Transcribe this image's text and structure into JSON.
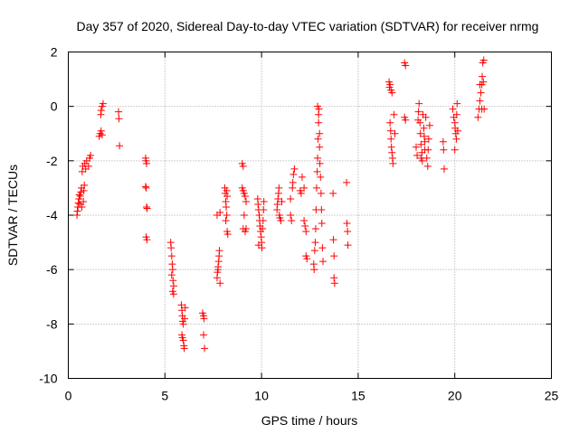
{
  "chart_data": {
    "type": "scatter",
    "title": "Day 357 of 2020, Sidereal Day-to-day VTEC variation (SDTVAR) for receiver nrmg",
    "xlabel": "GPS time / hours",
    "ylabel": "SDTVAR / TECUs",
    "xlim": [
      0,
      25
    ],
    "ylim": [
      -10,
      2
    ],
    "xticks": [
      0,
      5,
      10,
      15,
      20,
      25
    ],
    "yticks": [
      -10,
      -8,
      -6,
      -4,
      -2,
      0,
      2
    ],
    "grid": true,
    "legend": "none",
    "marker": "plus",
    "color": "#ff0000",
    "series": [
      {
        "name": "SDTVAR",
        "points": [
          [
            0.45,
            -4.0
          ],
          [
            0.47,
            -3.85
          ],
          [
            0.5,
            -3.7
          ],
          [
            0.52,
            -3.55
          ],
          [
            0.55,
            -3.4
          ],
          [
            0.57,
            -3.25
          ],
          [
            0.6,
            -3.6
          ],
          [
            0.62,
            -3.3
          ],
          [
            0.65,
            -3.15
          ],
          [
            0.68,
            -3.0
          ],
          [
            0.7,
            -3.7
          ],
          [
            0.72,
            -2.4
          ],
          [
            0.75,
            -2.2
          ],
          [
            0.78,
            -3.5
          ],
          [
            0.8,
            -3.1
          ],
          [
            0.83,
            -2.9
          ],
          [
            0.85,
            -2.1
          ],
          [
            0.9,
            -2.3
          ],
          [
            0.95,
            -2.0
          ],
          [
            1.05,
            -2.2
          ],
          [
            1.1,
            -1.9
          ],
          [
            1.15,
            -1.8
          ],
          [
            1.6,
            -1.1
          ],
          [
            1.65,
            -1.0
          ],
          [
            1.7,
            -0.9
          ],
          [
            1.75,
            -1.05
          ],
          [
            1.7,
            -0.15
          ],
          [
            1.75,
            0.0
          ],
          [
            1.8,
            0.1
          ],
          [
            1.68,
            -0.3
          ],
          [
            2.6,
            -0.2
          ],
          [
            2.62,
            -0.45
          ],
          [
            2.65,
            -1.45
          ],
          [
            4.0,
            -1.9
          ],
          [
            4.02,
            -2.0
          ],
          [
            4.05,
            -2.1
          ],
          [
            4.0,
            -2.95
          ],
          [
            4.03,
            -3.0
          ],
          [
            4.05,
            -3.7
          ],
          [
            4.08,
            -3.75
          ],
          [
            4.03,
            -4.8
          ],
          [
            4.07,
            -4.9
          ],
          [
            5.3,
            -5.0
          ],
          [
            5.32,
            -5.2
          ],
          [
            5.35,
            -5.5
          ],
          [
            5.38,
            -5.8
          ],
          [
            5.4,
            -6.0
          ],
          [
            5.35,
            -6.2
          ],
          [
            5.42,
            -6.4
          ],
          [
            5.45,
            -6.6
          ],
          [
            5.4,
            -6.8
          ],
          [
            5.45,
            -6.9
          ],
          [
            5.85,
            -7.3
          ],
          [
            5.88,
            -7.5
          ],
          [
            5.9,
            -7.7
          ],
          [
            5.92,
            -7.9
          ],
          [
            5.95,
            -8.0
          ],
          [
            5.88,
            -8.4
          ],
          [
            5.9,
            -8.5
          ],
          [
            5.95,
            -8.6
          ],
          [
            5.98,
            -8.8
          ],
          [
            6.0,
            -8.9
          ],
          [
            6.05,
            -7.4
          ],
          [
            6.02,
            -7.8
          ],
          [
            6.95,
            -7.6
          ],
          [
            7.0,
            -7.7
          ],
          [
            7.02,
            -7.8
          ],
          [
            7.0,
            -8.4
          ],
          [
            7.05,
            -8.9
          ],
          [
            7.7,
            -6.3
          ],
          [
            7.72,
            -6.1
          ],
          [
            7.75,
            -5.9
          ],
          [
            7.78,
            -5.7
          ],
          [
            7.8,
            -5.5
          ],
          [
            7.82,
            -5.3
          ],
          [
            7.85,
            -6.5
          ],
          [
            7.75,
            -6.0
          ],
          [
            7.7,
            -4.0
          ],
          [
            7.85,
            -3.9
          ],
          [
            8.1,
            -3.0
          ],
          [
            8.12,
            -3.2
          ],
          [
            8.15,
            -3.5
          ],
          [
            8.17,
            -3.7
          ],
          [
            8.2,
            -4.0
          ],
          [
            8.22,
            -4.6
          ],
          [
            8.25,
            -4.7
          ],
          [
            8.2,
            -3.1
          ],
          [
            8.15,
            -4.2
          ],
          [
            8.22,
            -3.3
          ],
          [
            9.0,
            -2.1
          ],
          [
            9.05,
            -2.2
          ],
          [
            9.0,
            -3.0
          ],
          [
            9.05,
            -3.1
          ],
          [
            9.1,
            -3.2
          ],
          [
            9.15,
            -3.3
          ],
          [
            9.2,
            -3.5
          ],
          [
            9.1,
            -4.0
          ],
          [
            9.2,
            -4.5
          ],
          [
            9.15,
            -4.6
          ],
          [
            9.05,
            -4.5
          ],
          [
            9.8,
            -3.4
          ],
          [
            9.82,
            -3.6
          ],
          [
            9.85,
            -3.8
          ],
          [
            9.88,
            -4.0
          ],
          [
            9.9,
            -4.2
          ],
          [
            9.92,
            -4.4
          ],
          [
            9.95,
            -4.6
          ],
          [
            9.98,
            -4.8
          ],
          [
            10.0,
            -5.0
          ],
          [
            10.02,
            -5.2
          ],
          [
            9.85,
            -5.1
          ],
          [
            10.05,
            -4.5
          ],
          [
            10.08,
            -4.2
          ],
          [
            10.1,
            -3.8
          ],
          [
            10.12,
            -3.5
          ],
          [
            10.8,
            -3.8
          ],
          [
            10.82,
            -3.6
          ],
          [
            10.85,
            -3.4
          ],
          [
            10.88,
            -3.2
          ],
          [
            10.9,
            -3.0
          ],
          [
            10.92,
            -4.0
          ],
          [
            10.95,
            -4.1
          ],
          [
            11.0,
            -4.2
          ],
          [
            11.05,
            -3.5
          ],
          [
            11.5,
            -4.0
          ],
          [
            11.55,
            -4.2
          ],
          [
            11.6,
            -3.0
          ],
          [
            11.62,
            -2.8
          ],
          [
            11.65,
            -2.5
          ],
          [
            11.7,
            -2.3
          ],
          [
            11.5,
            -3.4
          ],
          [
            12.0,
            -3.1
          ],
          [
            12.05,
            -3.2
          ],
          [
            12.1,
            -2.6
          ],
          [
            12.2,
            -3.0
          ],
          [
            12.2,
            -4.2
          ],
          [
            12.25,
            -4.4
          ],
          [
            12.3,
            -4.6
          ],
          [
            12.3,
            -5.5
          ],
          [
            12.35,
            -5.6
          ],
          [
            12.7,
            -5.8
          ],
          [
            12.72,
            -6.0
          ],
          [
            12.75,
            -5.3
          ],
          [
            12.78,
            -5.0
          ],
          [
            12.8,
            -4.5
          ],
          [
            12.82,
            -3.8
          ],
          [
            12.85,
            -3.0
          ],
          [
            12.88,
            -2.4
          ],
          [
            12.9,
            -1.9
          ],
          [
            12.92,
            -1.2
          ],
          [
            12.95,
            -0.6
          ],
          [
            12.97,
            -0.1
          ],
          [
            12.9,
            0.0
          ],
          [
            12.95,
            -0.3
          ],
          [
            13.0,
            -1.5
          ],
          [
            13.02,
            -2.1
          ],
          [
            13.05,
            -2.6
          ],
          [
            13.08,
            -3.2
          ],
          [
            13.1,
            -3.8
          ],
          [
            13.12,
            -4.3
          ],
          [
            13.15,
            -5.2
          ],
          [
            13.18,
            -5.7
          ],
          [
            13.0,
            -1.0
          ],
          [
            13.7,
            -3.2
          ],
          [
            13.72,
            -4.9
          ],
          [
            13.75,
            -5.5
          ],
          [
            13.75,
            -6.3
          ],
          [
            13.78,
            -6.5
          ],
          [
            14.4,
            -2.8
          ],
          [
            14.42,
            -4.3
          ],
          [
            14.45,
            -4.6
          ],
          [
            14.47,
            -5.1
          ],
          [
            16.6,
            0.9
          ],
          [
            16.62,
            0.7
          ],
          [
            16.65,
            0.8
          ],
          [
            16.7,
            0.6
          ],
          [
            16.75,
            0.5
          ],
          [
            16.65,
            -0.6
          ],
          [
            16.68,
            -0.9
          ],
          [
            16.7,
            -1.2
          ],
          [
            16.72,
            -1.5
          ],
          [
            16.75,
            -1.7
          ],
          [
            16.78,
            -1.9
          ],
          [
            16.8,
            -2.1
          ],
          [
            16.85,
            -0.3
          ],
          [
            16.9,
            -1.0
          ],
          [
            17.4,
            1.6
          ],
          [
            17.45,
            1.5
          ],
          [
            17.4,
            -0.4
          ],
          [
            17.45,
            -0.5
          ],
          [
            18.0,
            -1.5
          ],
          [
            18.05,
            -1.8
          ],
          [
            18.1,
            -0.5
          ],
          [
            18.12,
            -0.2
          ],
          [
            18.15,
            0.1
          ],
          [
            18.2,
            -0.6
          ],
          [
            18.22,
            -1.0
          ],
          [
            18.25,
            -1.4
          ],
          [
            18.3,
            -1.7
          ],
          [
            18.32,
            -2.0
          ],
          [
            18.35,
            -0.3
          ],
          [
            18.4,
            -0.8
          ],
          [
            18.42,
            -1.1
          ],
          [
            18.45,
            -1.3
          ],
          [
            18.5,
            -0.4
          ],
          [
            18.55,
            -1.9
          ],
          [
            18.6,
            -2.2
          ],
          [
            18.62,
            -1.6
          ],
          [
            18.65,
            -1.2
          ],
          [
            18.7,
            -0.7
          ],
          [
            18.25,
            -1.9
          ],
          [
            18.45,
            -1.6
          ],
          [
            19.4,
            -1.3
          ],
          [
            19.42,
            -1.6
          ],
          [
            19.45,
            -2.3
          ],
          [
            19.9,
            -0.1
          ],
          [
            19.95,
            -0.4
          ],
          [
            20.0,
            -0.6
          ],
          [
            20.02,
            -0.8
          ],
          [
            20.05,
            -1.0
          ],
          [
            20.08,
            -1.2
          ],
          [
            20.1,
            -0.3
          ],
          [
            20.12,
            0.1
          ],
          [
            20.15,
            -0.9
          ],
          [
            20.0,
            -1.6
          ],
          [
            21.2,
            -0.4
          ],
          [
            21.25,
            -0.1
          ],
          [
            21.3,
            0.2
          ],
          [
            21.35,
            0.5
          ],
          [
            21.4,
            0.8
          ],
          [
            21.42,
            1.1
          ],
          [
            21.45,
            1.6
          ],
          [
            21.5,
            1.7
          ],
          [
            21.48,
            0.9
          ],
          [
            21.52,
            -0.1
          ],
          [
            21.3,
            0.8
          ],
          [
            21.4,
            -0.1
          ]
        ]
      }
    ]
  }
}
